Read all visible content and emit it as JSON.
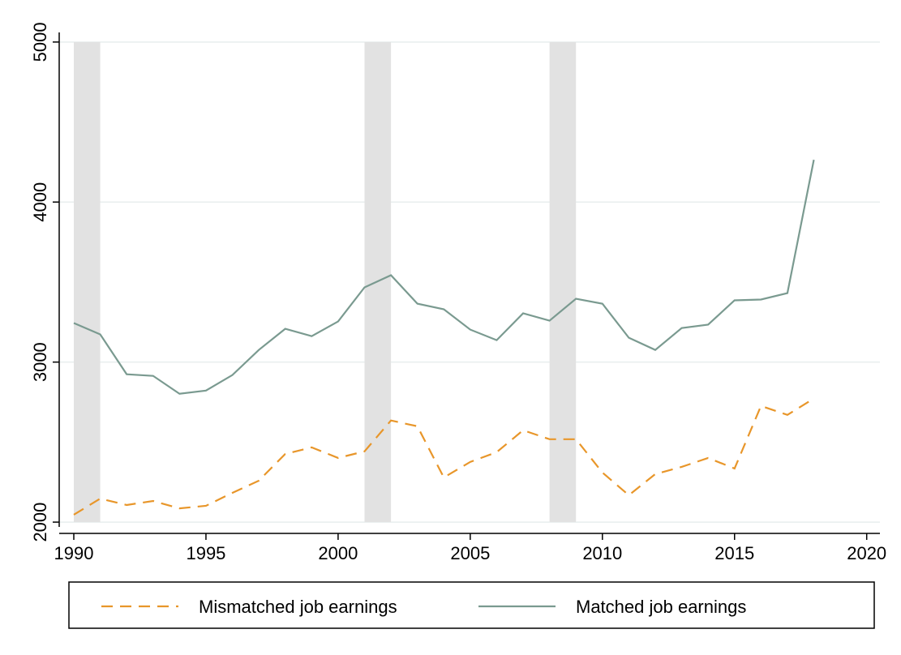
{
  "chart_data": {
    "type": "line",
    "x": [
      1990,
      1991,
      1992,
      1993,
      1994,
      1995,
      1996,
      1997,
      1998,
      1999,
      2000,
      2001,
      2002,
      2003,
      2004,
      2005,
      2006,
      2007,
      2008,
      2009,
      2010,
      2011,
      2012,
      2013,
      2014,
      2015,
      2016,
      2017,
      2018
    ],
    "series": [
      {
        "name": "Mismatched job earnings",
        "color": "#e8962a",
        "dashed": true,
        "values": [
          2046,
          2147,
          2107,
          2132,
          2086,
          2102,
          2183,
          2259,
          2426,
          2467,
          2401,
          2442,
          2635,
          2599,
          2279,
          2376,
          2437,
          2574,
          2518,
          2518,
          2310,
          2168,
          2300,
          2345,
          2401,
          2335,
          2726,
          2670,
          2772
        ]
      },
      {
        "name": "Matched job earnings",
        "color": "#7a9a90",
        "dashed": false,
        "values": [
          3244,
          3173,
          2924,
          2914,
          2802,
          2822,
          2919,
          3076,
          3208,
          3162,
          3254,
          3467,
          3543,
          3365,
          3330,
          3203,
          3137,
          3305,
          3259,
          3396,
          3365,
          3152,
          3076,
          3213,
          3234,
          3386,
          3391,
          3431,
          4264
        ]
      }
    ],
    "shaded_periods": [
      [
        1990,
        1991
      ],
      [
        2001,
        2002
      ],
      [
        2008,
        2009
      ]
    ],
    "shade_color": "#e2e2e2",
    "xlim": [
      1990,
      2020.5
    ],
    "xticks": [
      1990,
      1995,
      2000,
      2005,
      2010,
      2015,
      2020
    ],
    "ylim": [
      1970,
      5060
    ],
    "yticks": [
      2000,
      3000,
      4000,
      5000
    ],
    "grid": true,
    "legend": "bottom"
  }
}
